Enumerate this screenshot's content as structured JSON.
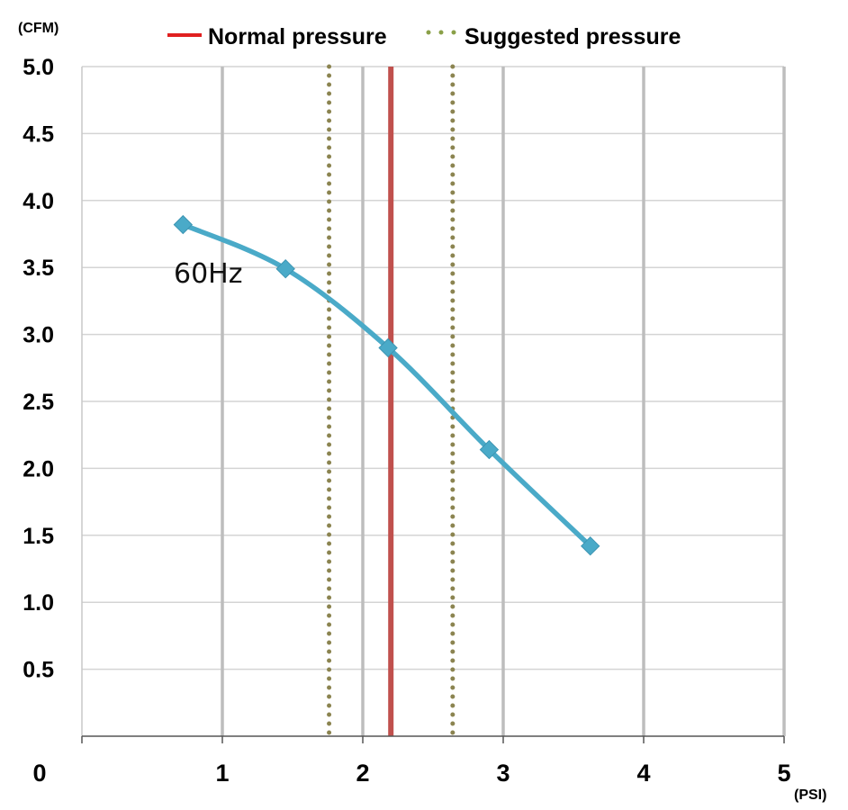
{
  "chart_data": {
    "type": "line",
    "ylabel": "(CFM)",
    "xlabel": "(PSI)",
    "xlim": [
      0,
      5
    ],
    "ylim": [
      0,
      5.0
    ],
    "x_ticks": [
      "0",
      "1",
      "2",
      "3",
      "4",
      "5"
    ],
    "y_ticks": [
      "0.5",
      "1.0",
      "1.5",
      "2.0",
      "2.5",
      "3.0",
      "3.5",
      "4.0",
      "4.5",
      "5.0"
    ],
    "grid": true,
    "legend": "top",
    "series": [
      {
        "name": "60Hz",
        "color": "#4aaac8",
        "marker": "diamond",
        "x": [
          0.72,
          1.45,
          2.18,
          2.9,
          3.62
        ],
        "y": [
          3.82,
          3.49,
          2.9,
          2.14,
          1.42
        ]
      }
    ],
    "reference_lines": [
      {
        "name": "Normal pressure",
        "style": "solid",
        "color": "#c0504d",
        "x": [
          2.2
        ]
      },
      {
        "name": "Suggested pressure",
        "style": "dotted",
        "color": "#8b8450",
        "x": [
          1.76,
          2.64
        ]
      }
    ],
    "annotations": [
      {
        "text": "60Hz"
      }
    ]
  }
}
